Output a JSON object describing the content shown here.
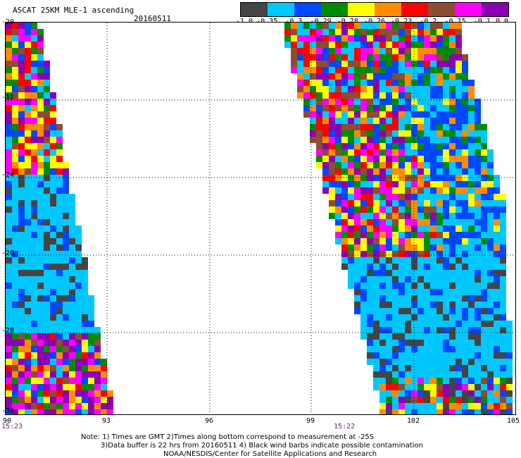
{
  "header": {
    "title": "ASCAT 25KM MLE-1 ascending",
    "date": "20160511"
  },
  "colorbar": {
    "colors": [
      "#444444",
      "#00c8ff",
      "#0048ff",
      "#008c00",
      "#ffff00",
      "#ff8c00",
      "#ff0000",
      "#8c4d33",
      "#ff00ff",
      "#8c00b4"
    ],
    "tick_labels": [
      "-1.0",
      "-0.35",
      "-0.3",
      "-0.29",
      "-0.28",
      "-0.26",
      "-0.23",
      "-0.2",
      "-0.15",
      "-0.1",
      "0.0"
    ]
  },
  "axes": {
    "y_labels": [
      "-20",
      "-12",
      "-24",
      "-26",
      "-28",
      "-30"
    ],
    "x_labels": [
      "90",
      "93",
      "96",
      "99",
      "102",
      "105"
    ],
    "time_labels": [
      "15:23",
      "15:22"
    ]
  },
  "notes": {
    "line1": "Note: 1) Times are GMT 2)Times along bottom correspond to measurement at -25S",
    "line2": "3)Data buffer is 22 hrs from 20160511 4) Black wind barbs indicate possible contamination",
    "line3": "NOAA/NESDIS/Center for Satellite Applications and Research"
  }
}
